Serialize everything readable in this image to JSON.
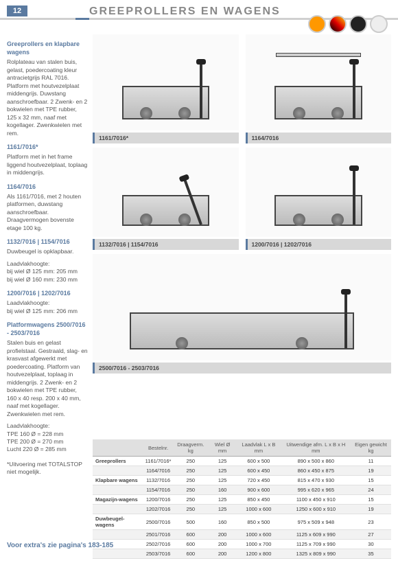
{
  "page_number": "12",
  "title": "GREEPROLLERS EN WAGENS",
  "sidebar": {
    "h1": "Greeprollers en klapbare wagens",
    "p1": "Rolplateau van stalen buis, gelast, poedercoating kleur antracietgrijs RAL 7016. Platform met houtvezelplaat middengrijs. Duwstang aanschroefbaar. 2 Zwenk- en 2 bokwielen met TPE rubber, 125 x 32 mm, naaf met kogellager. Zwenkwielen met rem.",
    "h2": "1161/7016*",
    "p2": "Platform met in het frame liggend houtvezelplaat, toplaag in middengrijs.",
    "h3": "1164/7016",
    "p3": "Als 1161/7016, met 2 houten platformen, duwstang aanschroefbaar. Draagvermogen bovenste etage 100 kg.",
    "h4": "1132/7016 | 1154/7016",
    "p4": "Duwbeugel is opklapbaar.",
    "p4b": "Laadvlakhoogte:\nbij wiel Ø 125 mm: 205 mm\nbij wiel Ø 160 mm: 230 mm",
    "h5": "1200/7016 | 1202/7016",
    "p5": "Laadvlakhoogte:\nbij wiel Ø 125 mm: 206 mm",
    "h6": "Platformwagens 2500/7016 - 2503/7016",
    "p6": "Stalen buis en gelast profielstaal. Gestraald, slag- en krasvast afgewerkt met poedercoating. Platform van houtvezelplaat, toplaag in middengrijs. 2 Zwenk- en 2 bokwielen met TPE rubber, 160 x 40 resp. 200 x 40  mm, naaf met kogellager. Zwenkwielen met rem.",
    "p6b": "Laadvlakhoogte:\nTPE 160 Ø = 228 mm\nTPE 200 Ø = 270 mm\nLucht 220 Ø = 285 mm",
    "p7": "*Uitvoering met TOTALSTOP niet mogelijk."
  },
  "products": [
    {
      "label": "1161/7016*",
      "shelf2": false,
      "fold": false,
      "big": false,
      "wide": false
    },
    {
      "label": "1164/7016",
      "shelf2": true,
      "fold": false,
      "big": false,
      "wide": false
    },
    {
      "label": "1132/7016 | 1154/7016",
      "shelf2": false,
      "fold": true,
      "big": false,
      "wide": false
    },
    {
      "label": "1200/7016 | 1202/7016",
      "shelf2": false,
      "fold": false,
      "big": false,
      "wide": false
    },
    {
      "label": "2500/7016 - 2503/7016",
      "shelf2": false,
      "fold": false,
      "big": true,
      "wide": true
    }
  ],
  "table": {
    "headers": [
      "",
      "Bestelnr.",
      "Draagverm. kg",
      "Wiel Ø mm",
      "Laadvlak L x B mm",
      "Uitwendige afm. L x B x H mm",
      "Eigen gewicht kg"
    ],
    "rows": [
      [
        "Greeprollers",
        "1161/7016*",
        "250",
        "125",
        "600 x 500",
        "890 x 500 x 860",
        "11"
      ],
      [
        "",
        "1164/7016",
        "250",
        "125",
        "600 x 450",
        "860 x 450 x 875",
        "19"
      ],
      [
        "Klapbare wagens",
        "1132/7016",
        "250",
        "125",
        "720 x 450",
        "815 x 470 x 930",
        "15"
      ],
      [
        "",
        "1154/7016",
        "250",
        "160",
        "900 x 600",
        "995 x 620 x 965",
        "24"
      ],
      [
        "Magazijn-wagens",
        "1200/7016",
        "250",
        "125",
        "850 x 450",
        "1100 x 450 x 910",
        "15"
      ],
      [
        "",
        "1202/7016",
        "250",
        "125",
        "1000 x 600",
        "1250 x 600 x 910",
        "19"
      ],
      [
        "Duwbeugel-wagens",
        "2500/7016",
        "500",
        "160",
        "850 x 500",
        "975 x 509 x 948",
        "23"
      ],
      [
        "",
        "2501/7016",
        "600",
        "200",
        "1000 x 600",
        "1125 x 609 x 990",
        "27"
      ],
      [
        "",
        "2502/7016",
        "600",
        "200",
        "1000 x 700",
        "1125 x 709 x 990",
        "30"
      ],
      [
        "",
        "2503/7016",
        "600",
        "200",
        "1200 x 800",
        "1325 x 809 x 990",
        "35"
      ]
    ]
  },
  "footer": "Voor extra's zie pagina's 183-185"
}
